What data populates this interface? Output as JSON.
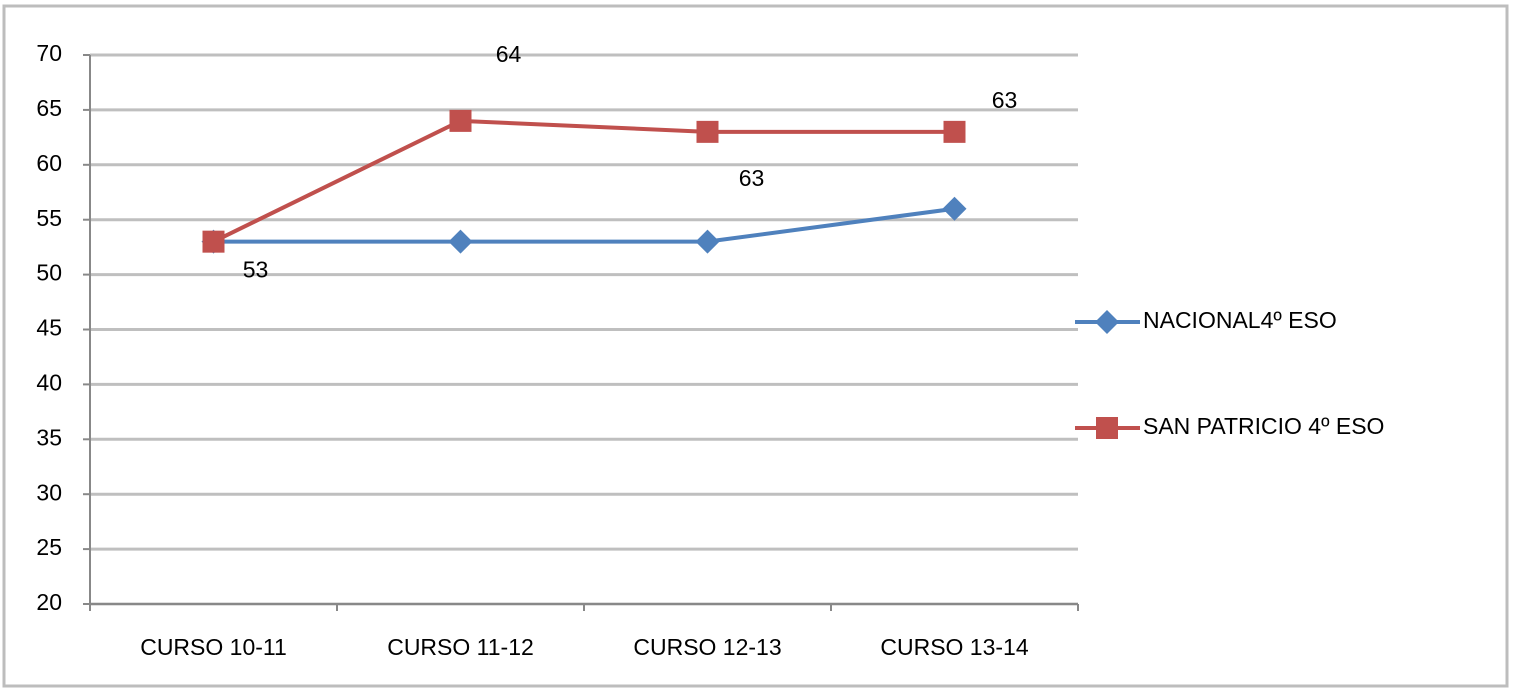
{
  "chart_data": {
    "type": "line",
    "categories": [
      "CURSO 10-11",
      "CURSO 11-12",
      "CURSO 12-13",
      "CURSO 13-14"
    ],
    "series": [
      {
        "name": "NACIONAL4º ESO",
        "color": "#4f81bd",
        "marker": "diamond",
        "values": [
          53,
          53,
          53,
          56
        ]
      },
      {
        "name": "SAN PATRICIO 4º ESO",
        "color": "#c0504d",
        "marker": "square",
        "values": [
          53,
          64,
          63,
          63
        ],
        "data_labels": true
      }
    ],
    "ylim": [
      20,
      70
    ],
    "yticks": [
      20,
      25,
      30,
      35,
      40,
      45,
      50,
      55,
      60,
      65,
      70
    ],
    "grid": true,
    "legend": "right"
  }
}
